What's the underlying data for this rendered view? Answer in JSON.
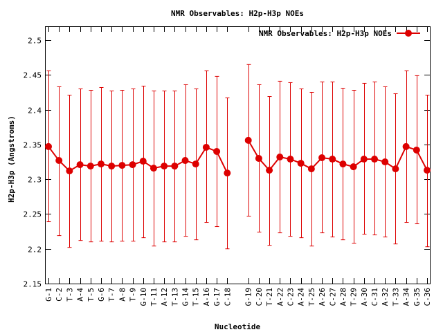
{
  "chart_data": {
    "type": "line",
    "title": "NMR Observables: H2p-H3p NOEs",
    "xlabel": "Nucleotide",
    "ylabel": "H2p-H3p (Angstroms)",
    "ylim": [
      2.15,
      2.52
    ],
    "yticks": [
      "2.15",
      "2.2",
      "2.25",
      "2.3",
      "2.35",
      "2.4",
      "2.45",
      "2.5"
    ],
    "ytick_values": [
      2.15,
      2.2,
      2.25,
      2.3,
      2.35,
      2.4,
      2.45,
      2.5
    ],
    "grid": false,
    "legend": "top-right",
    "colors": {
      "series": "#dd0000",
      "axis": "#000000"
    },
    "series": [
      {
        "name": "NMR Observables: H2p-H3p NOEs",
        "segments": [
          {
            "categories": [
              "G-1",
              "C-2",
              "T-3",
              "A-4",
              "T-5",
              "G-6",
              "T-7",
              "A-8",
              "T-9",
              "G-10",
              "T-11",
              "A-12",
              "T-13",
              "G-14",
              "T-15",
              "A-16",
              "G-17",
              "C-18"
            ],
            "values": [
              2.347,
              2.327,
              2.312,
              2.321,
              2.319,
              2.322,
              2.319,
              2.32,
              2.321,
              2.326,
              2.316,
              2.319,
              2.319,
              2.327,
              2.322,
              2.346,
              2.34,
              2.309
            ],
            "err_low": [
              2.239,
              2.219,
              2.202,
              2.212,
              2.21,
              2.211,
              2.21,
              2.211,
              2.211,
              2.216,
              2.204,
              2.21,
              2.21,
              2.218,
              2.213,
              2.238,
              2.232,
              2.2
            ],
            "err_high": [
              2.456,
              2.433,
              2.421,
              2.43,
              2.428,
              2.432,
              2.427,
              2.428,
              2.43,
              2.434,
              2.427,
              2.427,
              2.427,
              2.436,
              2.43,
              2.456,
              2.448,
              2.417
            ]
          },
          {
            "categories": [
              "G-19",
              "C-20",
              "T-21",
              "A-22",
              "C-23",
              "A-24",
              "T-25",
              "A-26",
              "C-27",
              "A-28",
              "T-29",
              "A-30",
              "C-31",
              "A-32",
              "T-33",
              "A-34",
              "G-35",
              "C-36"
            ],
            "values": [
              2.356,
              2.33,
              2.313,
              2.332,
              2.329,
              2.323,
              2.315,
              2.331,
              2.329,
              2.322,
              2.318,
              2.329,
              2.329,
              2.325,
              2.315,
              2.347,
              2.342,
              2.313
            ],
            "err_low": [
              2.247,
              2.224,
              2.205,
              2.223,
              2.218,
              2.216,
              2.204,
              2.223,
              2.217,
              2.213,
              2.208,
              2.221,
              2.22,
              2.217,
              2.207,
              2.238,
              2.236,
              2.203
            ],
            "err_high": [
              2.465,
              2.436,
              2.419,
              2.441,
              2.439,
              2.43,
              2.425,
              2.44,
              2.44,
              2.431,
              2.428,
              2.438,
              2.44,
              2.433,
              2.423,
              2.456,
              2.449,
              2.421
            ]
          }
        ]
      }
    ]
  }
}
